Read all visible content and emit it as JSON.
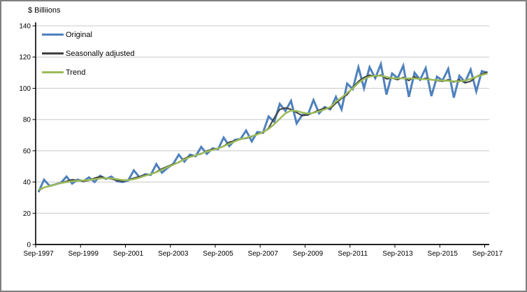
{
  "window": {
    "background": "#ffffff",
    "border_color": "#808080"
  },
  "chart_data": {
    "type": "line",
    "title": "",
    "ylabel": "$ Billiions",
    "xlabel": "",
    "ylim": [
      0,
      140
    ],
    "y_ticks": [
      0,
      20,
      40,
      60,
      80,
      100,
      120,
      140
    ],
    "x_tick_labels": [
      "Sep-1997",
      "Sep-1999",
      "Sep-2001",
      "Sep-2003",
      "Sep-2005",
      "Sep-2007",
      "Sep-2009",
      "Sep-2011",
      "Sep-2013",
      "Sep-2015",
      "Sep-2017"
    ],
    "grid": true,
    "gridline_color": "#C8C8C8",
    "axis_color": "#000000",
    "legend_position": "top-left",
    "categories": [
      "Sep-1997",
      "Dec-1997",
      "Mar-1998",
      "Jun-1998",
      "Sep-1998",
      "Dec-1998",
      "Mar-1999",
      "Jun-1999",
      "Sep-1999",
      "Dec-1999",
      "Mar-2000",
      "Jun-2000",
      "Sep-2000",
      "Dec-2000",
      "Mar-2001",
      "Jun-2001",
      "Sep-2001",
      "Dec-2001",
      "Mar-2002",
      "Jun-2002",
      "Sep-2002",
      "Dec-2002",
      "Mar-2003",
      "Jun-2003",
      "Sep-2003",
      "Dec-2003",
      "Mar-2004",
      "Jun-2004",
      "Sep-2004",
      "Dec-2004",
      "Mar-2005",
      "Jun-2005",
      "Sep-2005",
      "Dec-2005",
      "Mar-2006",
      "Jun-2006",
      "Sep-2006",
      "Dec-2006",
      "Mar-2007",
      "Jun-2007",
      "Sep-2007",
      "Dec-2007",
      "Mar-2008",
      "Jun-2008",
      "Sep-2008",
      "Dec-2008",
      "Mar-2009",
      "Jun-2009",
      "Sep-2009",
      "Dec-2009",
      "Mar-2010",
      "Jun-2010",
      "Sep-2010",
      "Dec-2010",
      "Mar-2011",
      "Jun-2011",
      "Sep-2011",
      "Dec-2011",
      "Mar-2012",
      "Jun-2012",
      "Sep-2012",
      "Dec-2012",
      "Mar-2013",
      "Jun-2013",
      "Sep-2013",
      "Dec-2013",
      "Mar-2014",
      "Jun-2014",
      "Sep-2014",
      "Dec-2014",
      "Mar-2015",
      "Jun-2015",
      "Sep-2015",
      "Dec-2015",
      "Mar-2016",
      "Jun-2016",
      "Sep-2016",
      "Dec-2016",
      "Mar-2017",
      "Jun-2017",
      "Sep-2017"
    ],
    "series": [
      {
        "name": "Original",
        "color": "#4F81BD",
        "stroke_width": 3,
        "values": [
          33.5,
          41.5,
          37.5,
          38.5,
          39.5,
          43.5,
          39,
          41.5,
          40.5,
          43,
          40,
          44,
          42,
          43.5,
          40.5,
          40,
          41,
          47.5,
          43,
          45,
          44.5,
          51.5,
          46,
          49,
          51.5,
          57.5,
          53,
          57.5,
          56.5,
          62.5,
          58,
          61.5,
          61,
          68.5,
          63,
          67,
          67.5,
          73,
          66,
          72,
          71.5,
          82,
          78.5,
          90,
          85.5,
          92,
          77.5,
          83,
          83,
          92.5,
          84,
          88,
          86.5,
          94.5,
          86.5,
          103,
          99.5,
          113.5,
          100,
          113.5,
          106.5,
          115.5,
          96,
          109.5,
          106.5,
          114.5,
          94.5,
          110,
          105.5,
          113,
          95,
          107.5,
          105,
          112.5,
          94,
          108,
          104,
          112,
          98,
          111,
          110
        ]
      },
      {
        "name": "Seasonally adjusted",
        "color": "#404040",
        "stroke_width": 2,
        "values": [
          34.5,
          36.5,
          37.5,
          38.5,
          39.5,
          40.5,
          41.5,
          41,
          40.5,
          41,
          42.5,
          43.5,
          42.5,
          42,
          41,
          40.5,
          41.5,
          42.5,
          43.5,
          44.5,
          45,
          46.5,
          48.5,
          50,
          51.5,
          52.5,
          55,
          56.5,
          57,
          58,
          60,
          61,
          61.5,
          63,
          65.5,
          66.5,
          67.5,
          68,
          69,
          71,
          71.5,
          74.5,
          81,
          86.5,
          87.5,
          86.5,
          84.5,
          82.5,
          83,
          84.5,
          86,
          87.5,
          87,
          90.5,
          93.5,
          96,
          100.5,
          104.5,
          107,
          108.5,
          107.5,
          108.5,
          106,
          106.5,
          105.5,
          107,
          105,
          107.5,
          105.5,
          106.5,
          105.5,
          105,
          104.5,
          105.5,
          104,
          105.5,
          103.5,
          104.5,
          107.5,
          109,
          110.5
        ]
      },
      {
        "name": "Trend",
        "color": "#9BBB59",
        "stroke_width": 2.5,
        "values": [
          35,
          36.5,
          37.5,
          38.5,
          39.3,
          40,
          40.5,
          40.8,
          41,
          41.3,
          41.8,
          42.3,
          42.5,
          42.3,
          41.8,
          41.3,
          41.3,
          41.8,
          42.8,
          44,
          45,
          46.3,
          47.8,
          49.5,
          51,
          52.8,
          54.5,
          56,
          57,
          58.3,
          59.5,
          60.5,
          61.5,
          63,
          64.5,
          66,
          67.5,
          68.3,
          69.3,
          70.5,
          72,
          74,
          77,
          80.5,
          84,
          85.8,
          85.5,
          84.5,
          83.8,
          84.3,
          85.3,
          86.5,
          88,
          91.5,
          94,
          97,
          100,
          103.5,
          106,
          107.5,
          108,
          108,
          107.3,
          106.5,
          106.3,
          106.3,
          106.3,
          106.3,
          106,
          105.8,
          105.5,
          105.3,
          105,
          104.8,
          104.5,
          104.5,
          105,
          106,
          107.3,
          108.5,
          109.5
        ]
      }
    ]
  }
}
